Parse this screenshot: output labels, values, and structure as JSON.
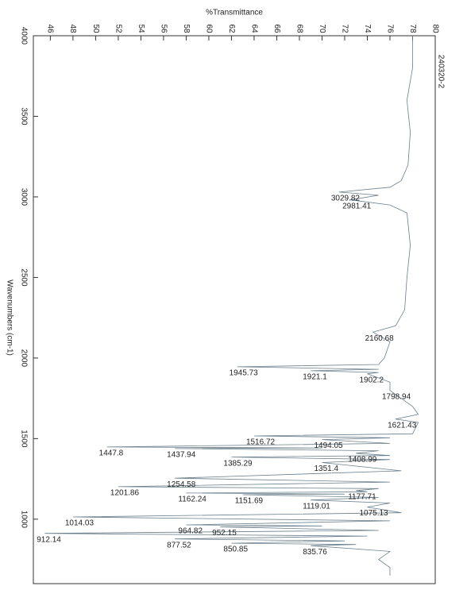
{
  "chart_data": {
    "type": "line",
    "title": "%Transmittance",
    "x_label": "Wavenumbers (cm-1)",
    "sample": "240320-2",
    "x": [
      4000,
      3800,
      3600,
      3400,
      3200,
      3100,
      3060,
      3029.82,
      3010,
      2981.41,
      2950,
      2900,
      2700,
      2500,
      2300,
      2200,
      2160.68,
      2100,
      2000,
      1960,
      1945.73,
      1930,
      1921.1,
      1910,
      1902.2,
      1850,
      1798.94,
      1700,
      1650,
      1621.43,
      1600,
      1530,
      1516.72,
      1505,
      1494.05,
      1470,
      1447.8,
      1442,
      1437.94,
      1425,
      1408.99,
      1395,
      1385.29,
      1370,
      1351.4,
      1300,
      1254.58,
      1230,
      1201.86,
      1190,
      1177.71,
      1170,
      1162.24,
      1156,
      1151.69,
      1135,
      1119.01,
      1100,
      1075.13,
      1040,
      1014.03,
      990,
      964.82,
      958,
      952.15,
      930,
      912.14,
      895,
      877.52,
      865,
      850.85,
      843,
      835.76,
      800,
      750,
      700,
      650
    ],
    "values": [
      78,
      78,
      77.5,
      77.8,
      77.6,
      77,
      76,
      71.5,
      75,
      72.5,
      76,
      77.5,
      77.8,
      77.5,
      77.3,
      76.5,
      74.5,
      76,
      75.5,
      75,
      62.5,
      75,
      69,
      75,
      74,
      76,
      76,
      78,
      78.5,
      76.5,
      78.5,
      78,
      64,
      76,
      70,
      76,
      51,
      70,
      57,
      75,
      73,
      76,
      62,
      76,
      70,
      77,
      57,
      76,
      52,
      75,
      73,
      74,
      58,
      72,
      63,
      75,
      69,
      76,
      74,
      77,
      48,
      76,
      58,
      70,
      61,
      75,
      45.5,
      74,
      57,
      72,
      62,
      73,
      69,
      76,
      75,
      76,
      76
    ],
    "color": "#6b7f8c",
    "xlim": [
      4000,
      600
    ],
    "xticks": [
      4000,
      3500,
      3000,
      2500,
      2000,
      1500,
      1000
    ],
    "ylim": [
      44.5,
      80
    ],
    "yticks": [
      46,
      48,
      50,
      52,
      54,
      56,
      58,
      60,
      62,
      64,
      66,
      68,
      70,
      72,
      74,
      76,
      78,
      80
    ],
    "peak_labels": [
      3029.82,
      2981.41,
      2160.68,
      1945.73,
      1921.1,
      1902.2,
      1798.94,
      1621.43,
      1516.72,
      1494.05,
      1447.8,
      1437.94,
      1408.99,
      1385.29,
      1351.4,
      1254.58,
      1201.86,
      1177.71,
      1162.24,
      1151.69,
      1119.01,
      1075.13,
      1014.03,
      964.82,
      952.15,
      912.14,
      877.52,
      850.85,
      835.76
    ]
  }
}
